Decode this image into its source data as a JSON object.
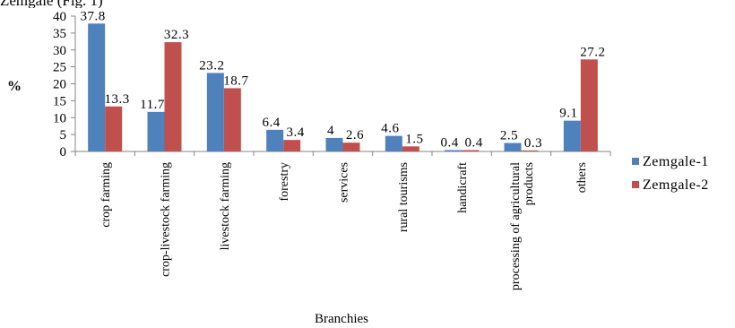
{
  "page_header": {
    "text": "Zemgale (Fig. 1)"
  },
  "chart_data": {
    "type": "bar",
    "title": "",
    "xlabel": "Branchies",
    "ylabel": "%",
    "ylim": [
      0,
      40
    ],
    "yticks": [
      0,
      5,
      10,
      15,
      20,
      25,
      30,
      35,
      40
    ],
    "grid": false,
    "legend_position": "right",
    "categories": [
      [
        "crop farming"
      ],
      [
        "crop-livestock farming"
      ],
      [
        "livestock farming"
      ],
      [
        "forestry"
      ],
      [
        "services"
      ],
      [
        "rural tourisms"
      ],
      [
        "handicraft"
      ],
      [
        "processing of agricultural",
        "products"
      ],
      [
        "others"
      ]
    ],
    "series": [
      {
        "name": "Zemgale-1",
        "color": "#4f81bd",
        "values": [
          37.8,
          11.7,
          23.2,
          6.4,
          4,
          4.6,
          0.4,
          2.5,
          9.1
        ]
      },
      {
        "name": "Zemgale-2",
        "color": "#c0504d",
        "values": [
          13.3,
          32.3,
          18.7,
          3.4,
          2.6,
          1.5,
          0.4,
          0.3,
          27.2
        ]
      }
    ]
  }
}
